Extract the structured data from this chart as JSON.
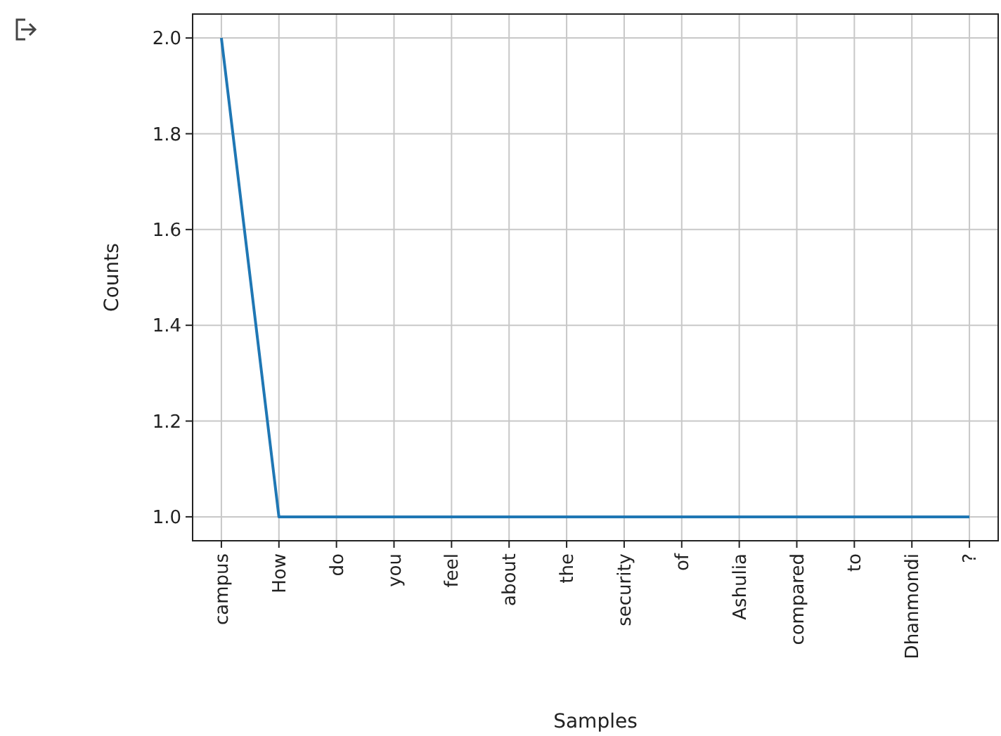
{
  "chart_data": {
    "type": "line",
    "xlabel": "Samples",
    "ylabel": "Counts",
    "categories": [
      "campus",
      "How",
      "do",
      "you",
      "feel",
      "about",
      "the",
      "security",
      "of",
      "Ashulia",
      "compared",
      "to",
      "Dhanmondi",
      "?"
    ],
    "series": [
      {
        "color": "#1f77b4",
        "values": [
          2,
          1,
          1,
          1,
          1,
          1,
          1,
          1,
          1,
          1,
          1,
          1,
          1,
          1
        ]
      }
    ],
    "ylim": [
      0.95,
      2.05
    ],
    "yticks": [
      {
        "value": 1,
        "label": "1.0"
      },
      {
        "value": 1.2,
        "label": "1.2"
      },
      {
        "value": 1.4,
        "label": "1.4"
      },
      {
        "value": 1.6,
        "label": "1.6"
      },
      {
        "value": 1.8,
        "label": "1.8"
      },
      {
        "value": 2,
        "label": "2.0"
      }
    ],
    "grid": true,
    "marker": "none",
    "line_style": "solid"
  }
}
